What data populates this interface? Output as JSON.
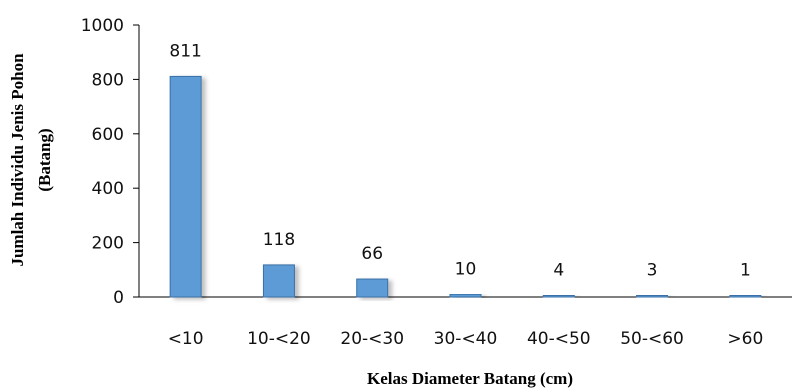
{
  "chart_data": {
    "type": "bar",
    "categories": [
      "<10",
      "10-<20",
      "20-<30",
      "30-<40",
      "40-<50",
      "50-<60",
      ">60"
    ],
    "values": [
      811,
      118,
      66,
      10,
      4,
      3,
      1
    ],
    "data_labels": [
      "811",
      "118",
      "66",
      "10",
      "4",
      "3",
      "1"
    ],
    "title": "",
    "xlabel": "Kelas Diameter Batang (cm)",
    "ylabel_line1": "Jumlah Individu Jenis Pohon",
    "ylabel_line2": "(Batang)",
    "ylim": [
      0,
      1000
    ],
    "yticks": [
      0,
      200,
      400,
      600,
      800,
      1000
    ],
    "ytick_labels": [
      "0",
      "200",
      "400",
      "600",
      "800",
      "1000"
    ],
    "grid": false,
    "legend": "none",
    "bar_color": "#5b9bd5",
    "bar_edge_color": "#3a70a8"
  }
}
